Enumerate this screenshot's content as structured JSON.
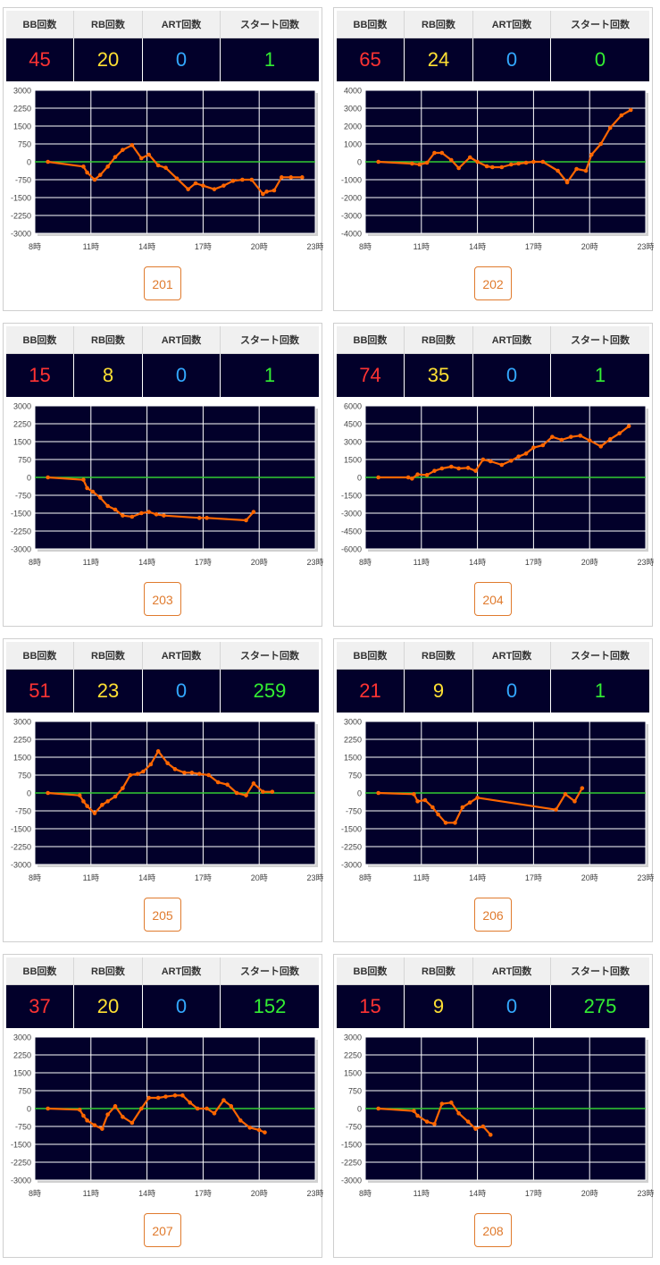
{
  "headers": {
    "bb": "BB回数",
    "rb": "RB回数",
    "art": "ART回数",
    "start": "スタート回数"
  },
  "machines": [
    {
      "number": "201",
      "bb": "45",
      "rb": "20",
      "art": "0",
      "start": "1"
    },
    {
      "number": "202",
      "bb": "65",
      "rb": "24",
      "art": "0",
      "start": "0"
    },
    {
      "number": "203",
      "bb": "15",
      "rb": "8",
      "art": "0",
      "start": "1"
    },
    {
      "number": "204",
      "bb": "74",
      "rb": "35",
      "art": "0",
      "start": "1"
    },
    {
      "number": "205",
      "bb": "51",
      "rb": "23",
      "art": "0",
      "start": "259"
    },
    {
      "number": "206",
      "bb": "21",
      "rb": "9",
      "art": "0",
      "start": "1"
    },
    {
      "number": "207",
      "bb": "37",
      "rb": "20",
      "art": "0",
      "start": "152"
    },
    {
      "number": "208",
      "bb": "15",
      "rb": "9",
      "art": "0",
      "start": "275"
    }
  ],
  "colors": {
    "bb": "#ff3333",
    "rb": "#ffe033",
    "art": "#33a8ff",
    "start": "#33ee33",
    "line": "#ff6600",
    "zero_line": "#33cc33",
    "plot_bg": "#02002a",
    "button": "#e07b2e"
  },
  "chart_data": [
    {
      "type": "line",
      "machine": "201",
      "x_ticks": [
        "8時",
        "11時",
        "14時",
        "17時",
        "20時",
        "23時"
      ],
      "xlim": [
        8,
        23
      ],
      "y_ticks": [
        "3000",
        "2250",
        "1500",
        "750",
        "0",
        "-750",
        "-1500",
        "-2250",
        "-3000"
      ],
      "ylim": [
        -3000,
        3000
      ],
      "x": [
        8.7,
        10.6,
        10.8,
        11.2,
        11.5,
        11.9,
        12.3,
        12.7,
        13.2,
        13.7,
        14.1,
        14.6,
        15.0,
        15.6,
        16.2,
        16.6,
        17.0,
        17.6,
        18.1,
        18.6,
        19.1,
        19.6,
        20.2,
        20.4,
        20.8,
        21.2,
        21.7,
        22.3
      ],
      "y": [
        0,
        -200,
        -450,
        -750,
        -550,
        -200,
        200,
        500,
        700,
        150,
        300,
        -150,
        -250,
        -700,
        -1150,
        -900,
        -1000,
        -1150,
        -1000,
        -800,
        -750,
        -750,
        -1350,
        -1250,
        -1200,
        -650,
        -650,
        -650
      ]
    },
    {
      "type": "line",
      "machine": "202",
      "x_ticks": [
        "8時",
        "11時",
        "14時",
        "17時",
        "20時",
        "23時"
      ],
      "xlim": [
        8,
        23
      ],
      "y_ticks": [
        "4000",
        "3000",
        "2000",
        "1000",
        "0",
        "-1000",
        "-2000",
        "-3000",
        "-4000"
      ],
      "ylim": [
        -4000,
        4000
      ],
      "x": [
        8.7,
        10.5,
        10.9,
        11.3,
        11.7,
        12.1,
        12.6,
        13.0,
        13.6,
        14.0,
        14.5,
        14.8,
        15.3,
        15.8,
        16.2,
        16.6,
        17.0,
        17.5,
        18.3,
        18.8,
        19.3,
        19.8,
        20.1,
        20.6,
        21.1,
        21.7,
        22.2
      ],
      "y": [
        0,
        -100,
        -150,
        -50,
        500,
        500,
        100,
        -350,
        250,
        0,
        -250,
        -300,
        -300,
        -150,
        -100,
        -50,
        0,
        0,
        -500,
        -1150,
        -400,
        -500,
        400,
        1000,
        1900,
        2600,
        2900
      ]
    },
    {
      "type": "line",
      "machine": "203",
      "x_ticks": [
        "8時",
        "11時",
        "14時",
        "17時",
        "20時",
        "23時"
      ],
      "xlim": [
        8,
        23
      ],
      "y_ticks": [
        "3000",
        "2250",
        "1500",
        "750",
        "0",
        "-750",
        "-1500",
        "-2250",
        "-3000"
      ],
      "ylim": [
        -3000,
        3000
      ],
      "x": [
        8.7,
        10.6,
        10.8,
        11.1,
        11.5,
        11.9,
        12.3,
        12.7,
        13.2,
        13.7,
        14.1,
        14.5,
        14.9,
        16.8,
        17.2,
        19.3,
        19.7
      ],
      "y": [
        0,
        -100,
        -450,
        -600,
        -850,
        -1200,
        -1350,
        -1600,
        -1650,
        -1500,
        -1450,
        -1550,
        -1600,
        -1700,
        -1700,
        -1800,
        -1450
      ]
    },
    {
      "type": "line",
      "machine": "204",
      "x_ticks": [
        "8時",
        "11時",
        "14時",
        "17時",
        "20時",
        "23時"
      ],
      "xlim": [
        8,
        23
      ],
      "y_ticks": [
        "6000",
        "4500",
        "3000",
        "1500",
        "0",
        "-1500",
        "-3000",
        "-4500",
        "-6000"
      ],
      "ylim": [
        -6000,
        6000
      ],
      "x": [
        8.7,
        10.3,
        10.5,
        10.8,
        11.3,
        11.7,
        12.1,
        12.6,
        13.0,
        13.5,
        13.9,
        14.3,
        14.7,
        15.3,
        15.8,
        16.2,
        16.6,
        17.0,
        17.5,
        18.0,
        18.5,
        19.0,
        19.5,
        20.0,
        20.6,
        21.1,
        21.6,
        22.1
      ],
      "y": [
        0,
        0,
        -100,
        250,
        200,
        550,
        750,
        900,
        750,
        800,
        550,
        1500,
        1350,
        1050,
        1400,
        1750,
        2000,
        2500,
        2700,
        3400,
        3150,
        3400,
        3500,
        3100,
        2600,
        3200,
        3700,
        4300
      ]
    },
    {
      "type": "line",
      "machine": "205",
      "x_ticks": [
        "8時",
        "11時",
        "14時",
        "17時",
        "20時",
        "23時"
      ],
      "xlim": [
        8,
        23
      ],
      "y_ticks": [
        "3000",
        "2250",
        "1500",
        "750",
        "0",
        "-750",
        "-1500",
        "-2250",
        "-3000"
      ],
      "ylim": [
        -3000,
        3000
      ],
      "x": [
        8.7,
        10.4,
        10.6,
        10.8,
        11.2,
        11.6,
        11.9,
        12.3,
        12.7,
        13.1,
        13.5,
        13.8,
        14.2,
        14.6,
        15.1,
        15.5,
        16.0,
        16.4,
        16.8,
        17.3,
        17.8,
        18.3,
        18.8,
        19.3,
        19.7,
        20.2,
        20.7
      ],
      "y": [
        0,
        -100,
        -350,
        -550,
        -850,
        -500,
        -350,
        -150,
        200,
        750,
        800,
        900,
        1200,
        1750,
        1250,
        1000,
        850,
        850,
        800,
        750,
        450,
        350,
        0,
        -100,
        400,
        50,
        50
      ]
    },
    {
      "type": "line",
      "machine": "206",
      "x_ticks": [
        "8時",
        "11時",
        "14時",
        "17時",
        "20時",
        "23時"
      ],
      "xlim": [
        8,
        23
      ],
      "y_ticks": [
        "3000",
        "2250",
        "1500",
        "750",
        "0",
        "-750",
        "-1500",
        "-2250",
        "-3000"
      ],
      "ylim": [
        -3000,
        3000
      ],
      "x": [
        8.7,
        10.6,
        10.8,
        11.2,
        11.6,
        11.9,
        12.3,
        12.8,
        13.2,
        13.6,
        14.0,
        18.2,
        18.7,
        19.2,
        19.6
      ],
      "y": [
        0,
        -50,
        -350,
        -300,
        -600,
        -900,
        -1250,
        -1250,
        -600,
        -400,
        -200,
        -700,
        -50,
        -350,
        200
      ]
    },
    {
      "type": "line",
      "machine": "207",
      "x_ticks": [
        "8時",
        "11時",
        "14時",
        "17時",
        "20時",
        "23時"
      ],
      "xlim": [
        8,
        23
      ],
      "y_ticks": [
        "3000",
        "2250",
        "1500",
        "750",
        "0",
        "-750",
        "-1500",
        "-2250",
        "-3000"
      ],
      "ylim": [
        -3000,
        3000
      ],
      "x": [
        8.7,
        10.4,
        10.6,
        10.8,
        11.2,
        11.6,
        11.9,
        12.3,
        12.7,
        13.2,
        13.7,
        14.1,
        14.6,
        15.0,
        15.5,
        15.9,
        16.3,
        16.7,
        17.2,
        17.6,
        18.1,
        18.5,
        19.0,
        19.5,
        20.0,
        20.3
      ],
      "y": [
        0,
        -50,
        -300,
        -500,
        -700,
        -850,
        -250,
        100,
        -350,
        -600,
        0,
        450,
        450,
        500,
        550,
        550,
        250,
        0,
        0,
        -200,
        350,
        100,
        -500,
        -800,
        -900,
        -1000
      ]
    },
    {
      "type": "line",
      "machine": "208",
      "x_ticks": [
        "8時",
        "11時",
        "14時",
        "17時",
        "20時",
        "23時"
      ],
      "xlim": [
        8,
        23
      ],
      "y_ticks": [
        "3000",
        "2250",
        "1500",
        "750",
        "0",
        "-750",
        "-1500",
        "-2250",
        "-3000"
      ],
      "ylim": [
        -3000,
        3000
      ],
      "x": [
        8.7,
        10.6,
        10.8,
        11.3,
        11.7,
        12.1,
        12.6,
        13.0,
        13.5,
        13.9,
        14.3,
        14.7
      ],
      "y": [
        0,
        -100,
        -300,
        -550,
        -650,
        200,
        250,
        -200,
        -550,
        -850,
        -750,
        -1100
      ]
    }
  ]
}
